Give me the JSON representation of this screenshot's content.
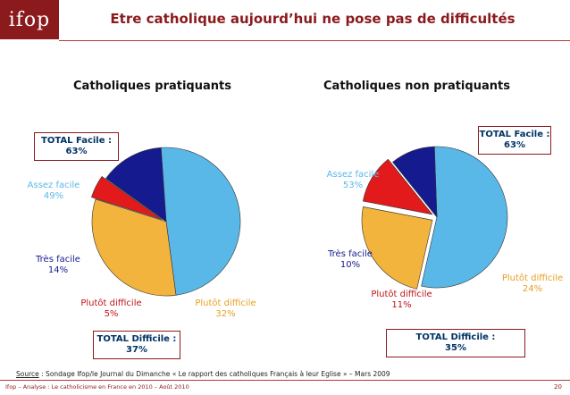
{
  "header": {
    "logo": "ifop",
    "title": "Etre catholique aujourd’hui ne pose pas de difficultés"
  },
  "chart_data": [
    {
      "type": "pie",
      "title": "Catholiques pratiquants",
      "slices": [
        {
          "label": "Assez facile",
          "value": 49,
          "pct": "49%",
          "color": "#5ab8e8"
        },
        {
          "label": "Plutôt difficile",
          "value": 32,
          "pct": "32%",
          "color": "#f2b43c"
        },
        {
          "label": "Plutôt difficile",
          "value": 5,
          "pct": "5%",
          "color": "#e31a1c"
        },
        {
          "label": "Très facile",
          "value": 14,
          "pct": "14%",
          "color": "#151a8e"
        }
      ],
      "total_facile": {
        "label": "TOTAL Facile :",
        "value": "63%"
      },
      "total_difficile": {
        "label": "TOTAL Difficile :",
        "value": "37%"
      }
    },
    {
      "type": "pie",
      "title": "Catholiques non pratiquants",
      "slices": [
        {
          "label": "Assez facile",
          "value": 53,
          "pct": "53%",
          "color": "#5ab8e8"
        },
        {
          "label": "Plutôt difficile",
          "value": 24,
          "pct": "24%",
          "color": "#f2b43c"
        },
        {
          "label": "Plutôt difficile",
          "value": 11,
          "pct": "11%",
          "color": "#e31a1c"
        },
        {
          "label": "Très facile",
          "value": 10,
          "pct": "10%",
          "color": "#151a8e"
        }
      ],
      "total_facile": {
        "label": "TOTAL Facile :",
        "value": "63%"
      },
      "total_difficile": {
        "label": "TOTAL Difficile :",
        "value": "35%"
      }
    }
  ],
  "source": {
    "label": "Source",
    "text": " : Sondage Ifop/le Journal du Dimanche « Le rapport des catholiques Français à leur Eglise » – Mars 2009"
  },
  "footer": {
    "text": "Ifop – Analyse : Le catholicisme en France en 2010 – Août 2010",
    "page": "20"
  }
}
